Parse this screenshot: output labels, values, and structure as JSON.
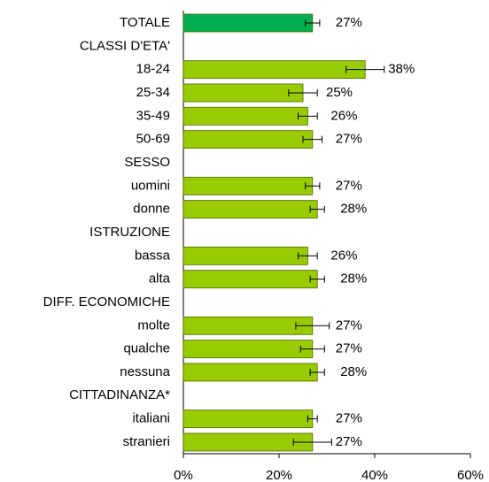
{
  "chart_data": {
    "type": "bar",
    "orientation": "horizontal",
    "categories": [
      "TOTALE",
      "CLASSI D'ETA'",
      "18-24",
      "25-34",
      "35-49",
      "50-69",
      "SESSO",
      "uomini",
      "donne",
      "ISTRUZIONE",
      "bassa",
      "alta",
      "DIFF. ECONOMICHE",
      "molte",
      "qualche",
      "nessuna",
      "CITTADINANZA*",
      "italiani",
      "stranieri"
    ],
    "values": [
      27,
      null,
      38,
      25,
      26,
      27,
      null,
      27,
      28,
      null,
      26,
      28,
      null,
      27,
      27,
      28,
      null,
      27,
      27
    ],
    "value_labels": [
      "27%",
      null,
      "38%",
      "25%",
      "26%",
      "27%",
      null,
      "27%",
      "28%",
      null,
      "26%",
      "28%",
      null,
      "27%",
      "27%",
      "28%",
      null,
      "27%",
      "27%"
    ],
    "errors": [
      1.5,
      null,
      4,
      3,
      2,
      2,
      null,
      1.5,
      1.5,
      null,
      2,
      1.5,
      null,
      3.5,
      2.5,
      1.5,
      null,
      1,
      4
    ],
    "colors": [
      "#00b050",
      null,
      "#99cc00",
      "#99cc00",
      "#99cc00",
      "#99cc00",
      null,
      "#99cc00",
      "#99cc00",
      null,
      "#99cc00",
      "#99cc00",
      null,
      "#99cc00",
      "#99cc00",
      "#99cc00",
      null,
      "#99cc00",
      "#99cc00"
    ],
    "xlim": [
      0,
      60
    ],
    "xticks": [
      {
        "value": 0,
        "label": "0%"
      },
      {
        "value": 20,
        "label": "20%"
      },
      {
        "value": 40,
        "label": "40%"
      },
      {
        "value": 60,
        "label": "60%"
      }
    ]
  }
}
